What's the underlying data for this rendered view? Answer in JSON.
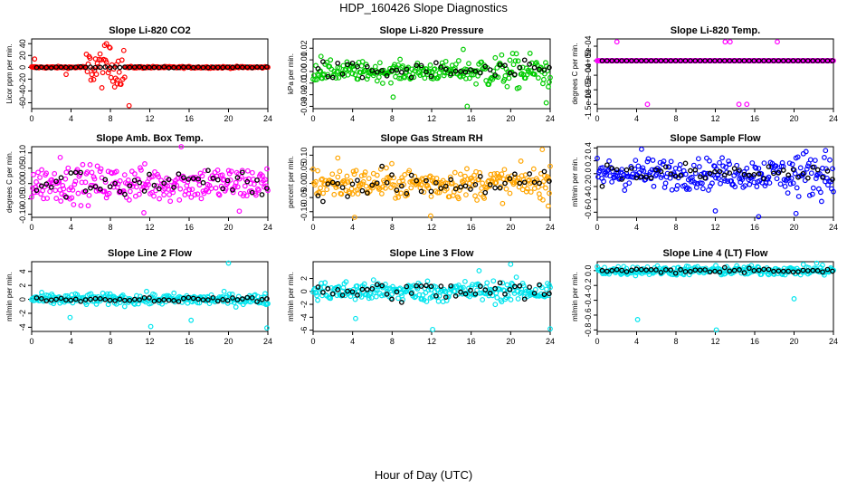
{
  "figure": {
    "title": "HDP_160426  Slope Diagnostics",
    "xlabel": "Hour of Day (UTC)"
  },
  "chart_data": [
    {
      "type": "scatter",
      "title": "Slope Li-820 CO2",
      "ylabel": "Licor ppm per min.",
      "xlim": [
        0,
        24
      ],
      "ylim": [
        -70,
        48
      ],
      "xticks": [
        0,
        4,
        8,
        12,
        16,
        20,
        24
      ],
      "yticks": [
        -60,
        -40,
        -20,
        0,
        20,
        40
      ],
      "ytick_labels": [
        "-60",
        "-40",
        "-20",
        "0",
        "20",
        "40"
      ],
      "color": "#ff0000",
      "noise": {
        "base": 0.8,
        "bursts": [
          {
            "from": 5.5,
            "to": 9.5,
            "amp": 18
          }
        ],
        "black_amp": 0.4
      },
      "outliers": [
        {
          "x": 7.6,
          "y": 40
        },
        {
          "x": 7.9,
          "y": 34
        },
        {
          "x": 9.9,
          "y": -65
        },
        {
          "x": 3.5,
          "y": -12
        },
        {
          "x": 0.3,
          "y": 14
        },
        {
          "x": 8.7,
          "y": -28
        }
      ]
    },
    {
      "type": "scatter",
      "title": "Slope Li-820 Pressure",
      "ylabel": "kPa per min.",
      "xlim": [
        0,
        24
      ],
      "ylim": [
        -0.032,
        0.028
      ],
      "xticks": [
        0,
        4,
        8,
        12,
        16,
        20,
        24
      ],
      "yticks": [
        -0.03,
        -0.02,
        -0.01,
        0.0,
        0.01,
        0.02
      ],
      "ytick_labels": [
        "-0.03",
        "-0.02",
        "-0.01",
        "0.00",
        "0.01",
        "0.02"
      ],
      "color": "#00cc00",
      "noise": {
        "base": 0.0045,
        "bursts": [
          {
            "from": 16,
            "to": 24,
            "amp": 0.008
          }
        ],
        "black_amp": 0.004
      },
      "outliers": [
        {
          "x": 15.6,
          "y": -0.03
        },
        {
          "x": 23.6,
          "y": -0.027
        },
        {
          "x": 8.1,
          "y": -0.022
        },
        {
          "x": 0.8,
          "y": 0.013
        },
        {
          "x": 15.2,
          "y": 0.019
        }
      ]
    },
    {
      "type": "scatter",
      "title": "Slope Li-820 Temp.",
      "ylabel": "degrees C per min.",
      "xlim": [
        0,
        24
      ],
      "ylim": [
        -0.00165,
        0.00075
      ],
      "xticks": [
        0,
        4,
        8,
        12,
        16,
        20,
        24
      ],
      "yticks": [
        -0.0015,
        -0.001,
        -0.0005,
        0.0,
        0.0005
      ],
      "ytick_labels": [
        "-1.5e-03",
        "-1e-03",
        "-5e-04",
        "0e+00",
        "5e-04"
      ],
      "color": "#ff00ff",
      "noise": {
        "base": 0.0,
        "bursts": [],
        "black_amp": 0.0
      },
      "outliers": [
        {
          "x": 2.0,
          "y": 0.00065
        },
        {
          "x": 13.0,
          "y": 0.00065
        },
        {
          "x": 13.5,
          "y": 0.00065
        },
        {
          "x": 18.3,
          "y": 0.00065
        },
        {
          "x": 5.1,
          "y": -0.0015
        },
        {
          "x": 14.4,
          "y": -0.0015
        },
        {
          "x": 15.2,
          "y": -0.0015
        }
      ]
    },
    {
      "type": "scatter",
      "title": "Slope Amb. Box Temp.",
      "ylabel": "degrees C per min.",
      "xlim": [
        0,
        24
      ],
      "ylim": [
        -0.11,
        0.12
      ],
      "xticks": [
        0,
        4,
        8,
        12,
        16,
        20,
        24
      ],
      "yticks": [
        -0.1,
        -0.05,
        0.0,
        0.05,
        0.1
      ],
      "ytick_labels": [
        "-0.10",
        "-0.05",
        "0.00",
        "0.05",
        "0.10"
      ],
      "color": "#ff00ff",
      "noise": {
        "base": 0.032,
        "bursts": [],
        "black_amp": 0.022
      },
      "outliers": [
        {
          "x": 15.2,
          "y": 0.12
        },
        {
          "x": 11.4,
          "y": -0.095
        },
        {
          "x": 21.1,
          "y": -0.09
        },
        {
          "x": 2.9,
          "y": 0.085
        }
      ]
    },
    {
      "type": "scatter",
      "title": "Slope Gas Stream RH",
      "ylabel": "percent per min.",
      "xlim": [
        0,
        24
      ],
      "ylim": [
        -0.12,
        0.13
      ],
      "xticks": [
        0,
        4,
        8,
        12,
        16,
        20,
        24
      ],
      "yticks": [
        -0.1,
        -0.05,
        0.0,
        0.05,
        0.1
      ],
      "ytick_labels": [
        "-0.10",
        "-0.05",
        "0.00",
        "0.05",
        "0.10"
      ],
      "color": "#ffa500",
      "noise": {
        "base": 0.03,
        "bursts": [],
        "black_amp": 0.025
      },
      "outliers": [
        {
          "x": 4.2,
          "y": -0.12
        },
        {
          "x": 11.9,
          "y": -0.115
        },
        {
          "x": 23.2,
          "y": 0.12
        },
        {
          "x": 23.8,
          "y": -0.08
        },
        {
          "x": 2.5,
          "y": 0.09
        }
      ]
    },
    {
      "type": "scatter",
      "title": "Slope Sample Flow",
      "ylabel": "ml/min per min.",
      "xlim": [
        0,
        24
      ],
      "ylim": [
        -0.68,
        0.42
      ],
      "xticks": [
        0,
        4,
        8,
        12,
        16,
        20,
        24
      ],
      "yticks": [
        -0.6,
        -0.4,
        -0.2,
        0.0,
        0.2,
        0.4
      ],
      "ytick_labels": [
        "-0.6",
        "-0.4",
        "-0.2",
        "0.0",
        "0.2",
        "0.4"
      ],
      "color": "#0000ff",
      "noise": {
        "base": 0.13,
        "bursts": [
          {
            "from": 19,
            "to": 24,
            "amp": 0.2
          }
        ],
        "black_amp": 0.08
      },
      "outliers": [
        {
          "x": 12.0,
          "y": -0.58
        },
        {
          "x": 16.4,
          "y": -0.67
        },
        {
          "x": 20.2,
          "y": -0.62
        },
        {
          "x": 4.5,
          "y": 0.38
        },
        {
          "x": 23.2,
          "y": 0.36
        }
      ]
    },
    {
      "type": "scatter",
      "title": "Slope Line 2 Flow",
      "ylabel": "ml/min per min.",
      "xlim": [
        0,
        24
      ],
      "ylim": [
        -4.6,
        5.4
      ],
      "xticks": [
        0,
        4,
        8,
        12,
        16,
        20,
        24
      ],
      "yticks": [
        -4,
        -2,
        0,
        2,
        4
      ],
      "ytick_labels": [
        "-4",
        "-2",
        "0",
        "2",
        "4"
      ],
      "color": "#00e5ee",
      "noise": {
        "base": 0.45,
        "bursts": [],
        "black_amp": 0.15
      },
      "outliers": [
        {
          "x": 20.0,
          "y": 5.2
        },
        {
          "x": 3.9,
          "y": -2.6
        },
        {
          "x": 12.1,
          "y": -3.9
        },
        {
          "x": 16.2,
          "y": -3.0
        },
        {
          "x": 23.9,
          "y": -4.1
        }
      ]
    },
    {
      "type": "scatter",
      "title": "Slope Line 3 Flow",
      "ylabel": "ml/min per min.",
      "xlim": [
        0,
        24
      ],
      "ylim": [
        -6.2,
        4.6
      ],
      "xticks": [
        0,
        4,
        8,
        12,
        16,
        20,
        24
      ],
      "yticks": [
        -6,
        -4,
        -2,
        0,
        2
      ],
      "ytick_labels": [
        "-6",
        "-4",
        "-2",
        "0",
        "2"
      ],
      "color": "#00e5ee",
      "noise": {
        "base": 0.9,
        "bursts": [],
        "black_amp": 0.8
      },
      "outliers": [
        {
          "x": 20.0,
          "y": 4.2
        },
        {
          "x": 12.1,
          "y": -5.9
        },
        {
          "x": 24.0,
          "y": -5.8
        },
        {
          "x": 4.3,
          "y": -4.2
        },
        {
          "x": 16.8,
          "y": 3.2
        }
      ]
    },
    {
      "type": "scatter",
      "title": "Slope Line 4 (LT) Flow",
      "ylabel": "ml/min per min.",
      "xlim": [
        0,
        24
      ],
      "ylim": [
        -0.82,
        0.12
      ],
      "xticks": [
        0,
        4,
        8,
        12,
        16,
        20,
        24
      ],
      "yticks": [
        -0.8,
        -0.6,
        -0.4,
        -0.2,
        0.0
      ],
      "ytick_labels": [
        "-0.8",
        "-0.6",
        "-0.4",
        "-0.2",
        "0.0"
      ],
      "color": "#00e5ee",
      "noise": {
        "base": 0.035,
        "bursts": [],
        "black_amp": 0.02
      },
      "outliers": [
        {
          "x": 4.1,
          "y": -0.66
        },
        {
          "x": 12.1,
          "y": -0.8
        },
        {
          "x": 20.0,
          "y": -0.38
        },
        {
          "x": 22.3,
          "y": 0.1
        }
      ]
    }
  ]
}
